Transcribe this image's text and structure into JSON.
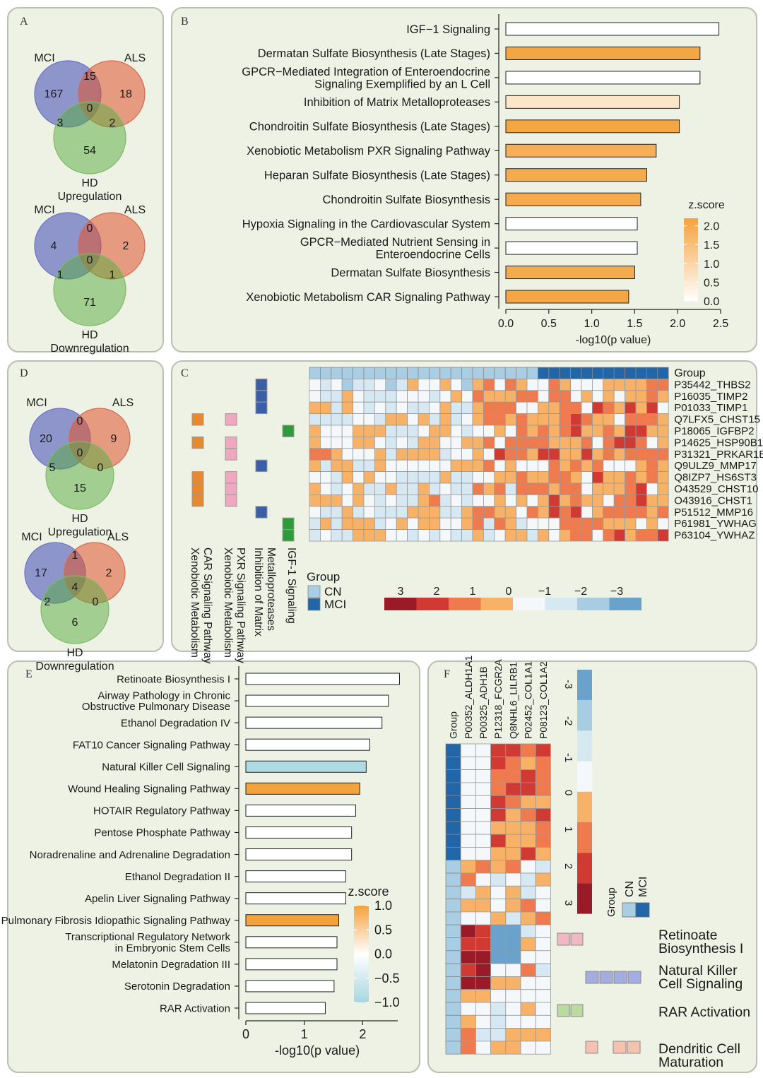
{
  "panels": {
    "A": {
      "label": "A",
      "venns": [
        {
          "title": "Upregulation",
          "set_names": [
            "MCI",
            "ALS",
            "HD"
          ],
          "counts": {
            "mci_only": "167",
            "mci_als": "15",
            "als_only": "18",
            "mci_hd": "3",
            "all": "0",
            "als_hd": "2",
            "hd_only": "54"
          }
        },
        {
          "title": "Downregulation",
          "set_names": [
            "MCI",
            "ALS",
            "HD"
          ],
          "counts": {
            "mci_only": "4",
            "mci_als": "0",
            "als_only": "2",
            "mci_hd": "1",
            "all": "0",
            "als_hd": "1",
            "hd_only": "71"
          }
        }
      ]
    },
    "D": {
      "label": "D",
      "venns": [
        {
          "title": "Upregulation",
          "set_names": [
            "MCI",
            "ALS",
            "HD"
          ],
          "counts": {
            "mci_only": "20",
            "mci_als": "0",
            "als_only": "9",
            "mci_hd": "5",
            "all": "0",
            "als_hd": "0",
            "hd_only": "15"
          }
        },
        {
          "title": "Downregulation",
          "set_names": [
            "MCI",
            "ALS",
            "HD"
          ],
          "counts": {
            "mci_only": "17",
            "mci_als": "1",
            "als_only": "2",
            "mci_hd": "2",
            "all": "4",
            "als_hd": "0",
            "hd_only": "6"
          }
        }
      ]
    },
    "C": {
      "label": "C",
      "group_label": "Group",
      "legend_title": "Group",
      "legend_groups": [
        "CN",
        "MCI"
      ],
      "group_colors": {
        "CN": "#a9cde3",
        "MCI": "#2166a8"
      },
      "group_pattern": [
        "CN",
        "CN",
        "CN",
        "CN",
        "CN",
        "CN",
        "CN",
        "CN",
        "CN",
        "CN",
        "CN",
        "CN",
        "CN",
        "CN",
        "CN",
        "CN",
        "CN",
        "CN",
        "CN",
        "CN",
        "CN",
        "MCI",
        "MCI",
        "MCI",
        "MCI",
        "MCI",
        "MCI",
        "MCI",
        "MCI",
        "MCI",
        "MCI",
        "MCI",
        "MCI"
      ],
      "proteins": [
        "P35442_THBS2",
        "P16035_TIMP2",
        "P01033_TIMP1",
        "Q7LFX5_CHST15",
        "P18065_IGFBP2",
        "P14625_HSP90B1",
        "P31321_PRKAR1B",
        "Q9ULZ9_MMP17",
        "Q8IZP7_HS6ST3",
        "O43529_CHST10",
        "O43916_CHST1",
        "P51512_MMP16",
        "P61981_YWHAG",
        "P63104_YWHAZ"
      ],
      "pathways": [
        "Xenobiotic Metabolism\nCAR Signaling Pathway",
        "Xenobiotic Metabolism\nPXR Signaling Pathway",
        "Inhibition of Matrix\nMetalloproteases",
        "IGF-1 Signaling"
      ],
      "pathway_colors": [
        "#e8892e",
        "#f0a7c0",
        "#3a5ea8",
        "#2e9a3a"
      ],
      "scale_labels": [
        "3",
        "2",
        "1",
        "0",
        "−1",
        "−2",
        "−3"
      ],
      "scale_colors": [
        "#9a1a27",
        "#d03a33",
        "#ee7a4d",
        "#f7b267",
        "#f4f8fb",
        "#d6e8f2",
        "#a8cde3",
        "#6aa2cb"
      ]
    },
    "F": {
      "label": "F",
      "group_label": "Group",
      "legend_title": "Group",
      "legend_groups": [
        "CN",
        "MCI"
      ],
      "group_colors": {
        "CN": "#a9cde3",
        "MCI": "#2166a8"
      },
      "proteins": [
        "P00352_ALDH1A1",
        "P00325_ADH1B",
        "P12318_FCGR2A",
        "Q8NHL6_LILRB1",
        "P02452_COL1A1",
        "P08123_COL1A2"
      ],
      "pathways": [
        "Retinoate\nBiosynthesis I",
        "Natural Killer\nCell Signaling",
        "RAR Activation",
        "Dendritic Cell\nMaturation"
      ],
      "pathway_colors": [
        "#f0b8c2",
        "#a4addf",
        "#b9dc9e",
        "#f4c2ae"
      ],
      "scale_labels": [
        "-3",
        "-2",
        "-1",
        "0",
        "1",
        "2",
        "3"
      ],
      "scale_colors": [
        "#6aa2cb",
        "#a8cde3",
        "#d6e8f2",
        "#f4f8fb",
        "#f7b267",
        "#ee7a4d",
        "#d03a33",
        "#9a1a27"
      ]
    }
  },
  "chart_data": [
    {
      "panel": "B",
      "type": "bar",
      "title": "",
      "xlabel": "-log10(p value)",
      "ylabel": "",
      "xlim": [
        0,
        2.5
      ],
      "xticks": [
        "0.0",
        "0.5",
        "1.0",
        "1.5",
        "2.0",
        "2.5"
      ],
      "categories": [
        "IGF−1 Signaling",
        "Dermatan Sulfate Biosynthesis (Late Stages)",
        "GPCR−Mediated Integration of Enteroendocrine\nSignaling Exemplified by an L Cell",
        "Inhibition of Matrix Metalloproteases",
        "Chondroitin Sulfate Biosynthesis (Late Stages)",
        "Xenobiotic Metabolism PXR Signaling Pathway",
        "Heparan Sulfate Biosynthesis (Late Stages)",
        "Chondroitin Sulfate Biosynthesis",
        "Hypoxia Signaling in the Cardiovascular System",
        "GPCR−Mediated Nutrient Sensing in\nEnteroendocrine Cells",
        "Dermatan Sulfate Biosynthesis",
        "Xenobiotic Metabolism CAR Signaling Pathway"
      ],
      "values": [
        2.48,
        2.26,
        2.26,
        2.02,
        2.02,
        1.75,
        1.64,
        1.57,
        1.53,
        1.53,
        1.5,
        1.43
      ],
      "zscores": [
        0,
        2.1,
        0,
        0.6,
        2.1,
        1.9,
        2,
        2,
        0,
        0,
        2,
        2.1
      ],
      "legend": {
        "title": "z.score",
        "ticks": [
          "2.0",
          "1.5",
          "1.0",
          "0.5",
          "0.0"
        ],
        "tick_values": [
          2,
          1.5,
          1,
          0.5,
          0
        ],
        "range": [
          0,
          2.2
        ],
        "colors": [
          "#ffffff",
          "#f4a23b"
        ]
      }
    },
    {
      "panel": "E",
      "type": "bar",
      "title": "",
      "xlabel": "-log10(p value)",
      "ylabel": "",
      "xlim": [
        0,
        2.6
      ],
      "xticks": [
        "0",
        "1",
        "2"
      ],
      "categories": [
        "Retinoate Biosynthesis I",
        "Airway Pathology in Chronic\nObstructive Pulmonary Disease",
        "Ethanol Degradation IV",
        "FAT10 Cancer Signaling Pathway",
        "Natural Killer Cell Signaling",
        "Wound Healing Signaling Pathway",
        "HOTAIR Regulatory Pathway",
        "Pentose Phosphate Pathway",
        "Noradrenaline and Adrenaline Degradation",
        "Ethanol Degradation II",
        "Apelin Liver Signaling Pathway",
        "Pulmonary Fibrosis Idiopathic Signaling Pathway",
        "Transcriptional Regulatory Network\nin Embryonic Stem Cells",
        "Melatonin Degradation III",
        "Serotonin Degradation",
        "RAR Activation"
      ],
      "values": [
        2.63,
        2.44,
        2.33,
        2.12,
        2.06,
        1.95,
        1.88,
        1.81,
        1.81,
        1.71,
        1.71,
        1.59,
        1.56,
        1.56,
        1.51,
        1.36
      ],
      "zscores": [
        0,
        0,
        0,
        0,
        -0.9,
        1.2,
        0,
        0,
        0,
        0,
        0,
        1.2,
        0,
        0,
        0,
        0
      ],
      "legend": {
        "title": "z.score",
        "ticks": [
          "1.0",
          "0.5",
          "0.0",
          "−0.5",
          "−1.0"
        ],
        "tick_values": [
          1,
          0.5,
          0,
          -0.5,
          -1
        ],
        "range": [
          -1,
          1
        ],
        "colors": [
          "#a7d6e0",
          "#ffffff",
          "#f4a23b"
        ]
      }
    }
  ]
}
